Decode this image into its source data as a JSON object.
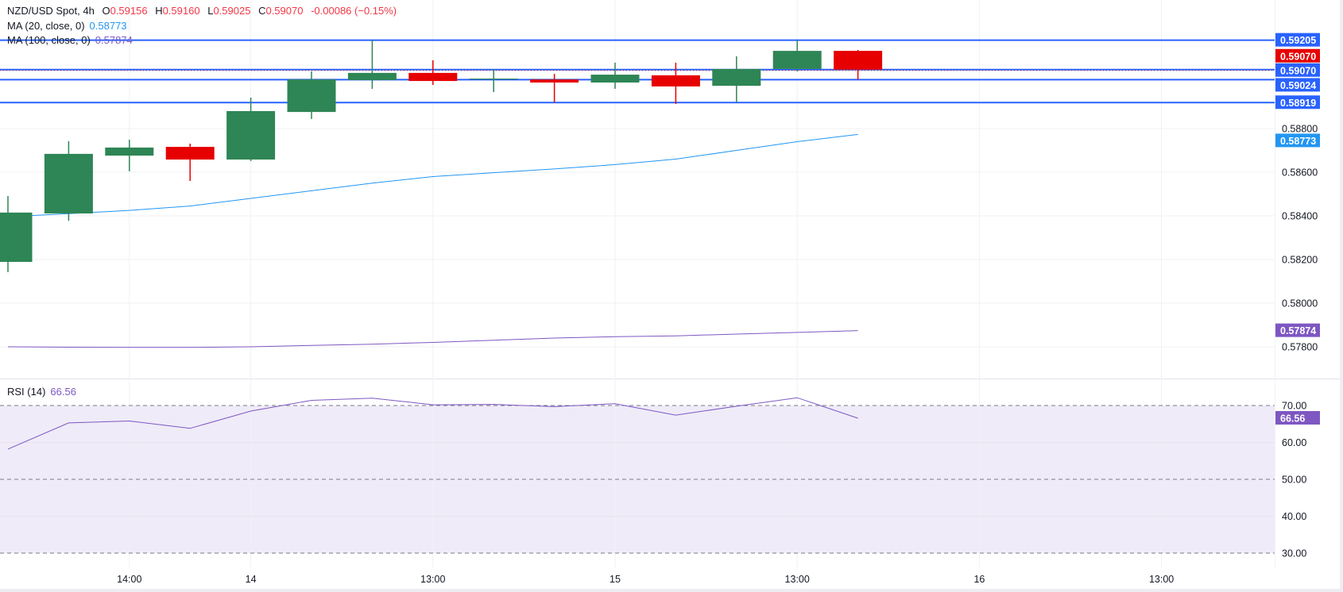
{
  "header": {
    "symbol": "NZD/USD Spot, 4h",
    "o_label": "O",
    "o": "0.59156",
    "h_label": "H",
    "h": "0.59160",
    "l_label": "L",
    "l": "0.59025",
    "c_label": "C",
    "c": "0.59070",
    "change": "-0.00086 (−0.15%)"
  },
  "indicators": {
    "ma20": {
      "label": "MA (20, close, 0)",
      "value": "0.58773"
    },
    "ma100": {
      "label": "MA (100, close, 0)",
      "value": "0.57874"
    },
    "rsi": {
      "label": "RSI (14)",
      "value": "66.56"
    }
  },
  "colors": {
    "up": "#2e8555",
    "down": "#e60000",
    "level": "#2962ff",
    "ma20": "#2196f3",
    "ma100": "#7e57c2",
    "rsi": "#7e57c2",
    "rsi_band": "#efebf8"
  },
  "chart_data": [
    {
      "type": "candlestick",
      "title": "NZD/USD Spot, 4h",
      "ylim": [
        0.5772,
        0.593
      ],
      "y_ticks": [
        "0.58800",
        "0.58600",
        "0.58400",
        "0.58200",
        "0.58000",
        "0.57800"
      ],
      "x_ticks": [
        {
          "label": "14:00",
          "index": 2
        },
        {
          "label": "14",
          "index": 4
        },
        {
          "label": "13:00",
          "index": 7
        },
        {
          "label": "15",
          "index": 10
        },
        {
          "label": "13:00",
          "index": 13
        },
        {
          "label": "16",
          "index": 16
        },
        {
          "label": "13:00",
          "index": 19
        }
      ],
      "candles": [
        {
          "o": 0.58189,
          "h": 0.58491,
          "l": 0.58142,
          "c": 0.58415
        },
        {
          "o": 0.58411,
          "h": 0.58742,
          "l": 0.58378,
          "c": 0.58684
        },
        {
          "o": 0.58676,
          "h": 0.58749,
          "l": 0.58604,
          "c": 0.58713
        },
        {
          "o": 0.58716,
          "h": 0.58731,
          "l": 0.5856,
          "c": 0.58658
        },
        {
          "o": 0.58658,
          "h": 0.58942,
          "l": 0.58651,
          "c": 0.5888
        },
        {
          "o": 0.58876,
          "h": 0.59062,
          "l": 0.58844,
          "c": 0.59025
        },
        {
          "o": 0.59022,
          "h": 0.59205,
          "l": 0.58982,
          "c": 0.59055
        },
        {
          "o": 0.59055,
          "h": 0.59113,
          "l": 0.59,
          "c": 0.59018
        },
        {
          "o": 0.59027,
          "h": 0.59073,
          "l": 0.58967,
          "c": 0.59029
        },
        {
          "o": 0.59025,
          "h": 0.59051,
          "l": 0.5892,
          "c": 0.59011
        },
        {
          "o": 0.59011,
          "h": 0.59102,
          "l": 0.58982,
          "c": 0.59047
        },
        {
          "o": 0.59044,
          "h": 0.59102,
          "l": 0.58913,
          "c": 0.58993
        },
        {
          "o": 0.58996,
          "h": 0.59131,
          "l": 0.5892,
          "c": 0.59073
        },
        {
          "o": 0.59073,
          "h": 0.59205,
          "l": 0.59062,
          "c": 0.59156
        },
        {
          "o": 0.59156,
          "h": 0.5916,
          "l": 0.59025,
          "c": 0.5907
        }
      ],
      "ma20": [
        0.58396,
        0.5841,
        0.58425,
        0.58445,
        0.5848,
        0.58515,
        0.5855,
        0.5858,
        0.58598,
        0.58615,
        0.58635,
        0.5866,
        0.587,
        0.5874,
        0.58773
      ],
      "ma100": [
        0.578,
        0.57798,
        0.57797,
        0.57797,
        0.578,
        0.57806,
        0.57812,
        0.5782,
        0.5783,
        0.5784,
        0.57846,
        0.5785,
        0.57858,
        0.57866,
        0.57874
      ],
      "levels": [
        {
          "value": 0.59205,
          "label": "0.59205"
        },
        {
          "value": 0.5907,
          "label": "0.59070"
        },
        {
          "value": 0.59024,
          "label": "0.59024"
        },
        {
          "value": 0.58919,
          "label": "0.58919"
        }
      ],
      "last_price": {
        "value": 0.5907,
        "label": "0.59070"
      },
      "ma20_tag": "0.58773",
      "ma100_tag": "0.57874"
    },
    {
      "type": "line",
      "title": "RSI (14)",
      "ylim": [
        25,
        78
      ],
      "y_ticks": [
        "70.00",
        "60.00",
        "50.00",
        "40.00",
        "30.00"
      ],
      "bands": [
        70,
        50,
        30
      ],
      "values": [
        58.2,
        65.3,
        65.8,
        63.8,
        68.5,
        71.4,
        72.0,
        70.2,
        70.3,
        69.7,
        70.5,
        67.4,
        69.8,
        72.1,
        66.56
      ],
      "last_tag": "66.56"
    }
  ]
}
